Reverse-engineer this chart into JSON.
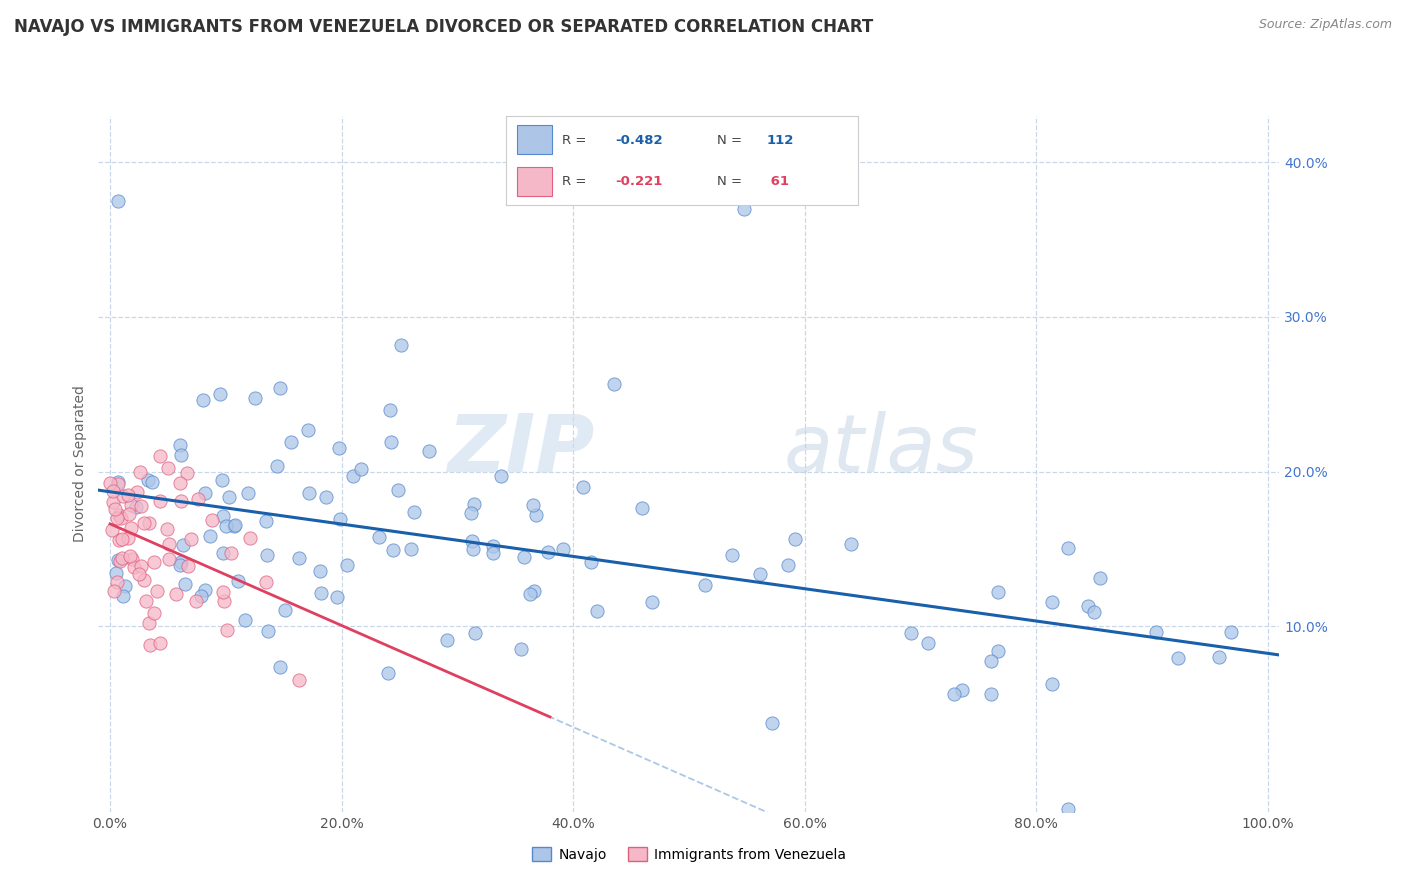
{
  "title": "NAVAJO VS IMMIGRANTS FROM VENEZUELA DIVORCED OR SEPARATED CORRELATION CHART",
  "source": "Source: ZipAtlas.com",
  "xlabel_ticks": [
    "0.0%",
    "20.0%",
    "40.0%",
    "60.0%",
    "80.0%",
    "100.0%"
  ],
  "ylabel_ticks_right": [
    "10.0%",
    "20.0%",
    "30.0%",
    "40.0%"
  ],
  "ylabel_label": "Divorced or Separated",
  "legend_labels": [
    "Navajo",
    "Immigrants from Venezuela"
  ],
  "navajo_color": "#adc6e8",
  "venezuela_color": "#f5b8c8",
  "navajo_edge_color": "#5588cc",
  "venezuela_edge_color": "#e06080",
  "navajo_line_color": "#1a5faa",
  "venezuela_line_color": "#e04060",
  "trend_dash_color": "#aac8e8",
  "navajo_R": -0.482,
  "navajo_N": 112,
  "venezuela_R": -0.221,
  "venezuela_N": 61,
  "xlim": [
    -0.01,
    1.01
  ],
  "ylim": [
    -0.02,
    0.43
  ],
  "background_color": "#ffffff",
  "grid_color": "#c8d8ea",
  "watermark_zip": "ZIP",
  "watermark_atlas": "atlas",
  "title_fontsize": 12,
  "label_fontsize": 10,
  "tick_fontsize": 10
}
